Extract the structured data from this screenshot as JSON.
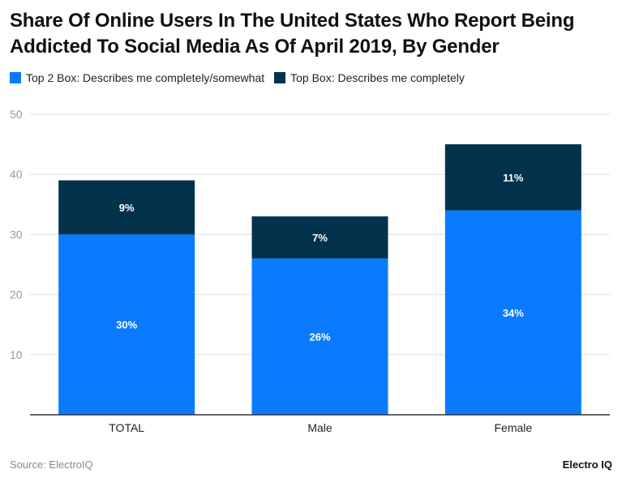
{
  "chart_data": {
    "type": "bar",
    "stacked": true,
    "title": "Share Of Online Users In The United States Who Report Being Addicted To Social Media As Of April 2019, By Gender",
    "categories": [
      "TOTAL",
      "Male",
      "Female"
    ],
    "series": [
      {
        "name": "Top 2 Box: Describes me completely/somewhat",
        "values": [
          30,
          26,
          34
        ],
        "color": "#0A7AFF",
        "labels": [
          "30%",
          "26%",
          "34%"
        ]
      },
      {
        "name": "Top Box: Describes me completely",
        "values": [
          9,
          7,
          11
        ],
        "color": "#02324C",
        "labels": [
          "9%",
          "7%",
          "11%"
        ]
      }
    ],
    "ylim": [
      0,
      50
    ],
    "yticks": [
      10,
      20,
      30,
      40,
      50
    ],
    "grid": true,
    "legend_position": "top-left"
  },
  "footer": {
    "source": "Source: ElectroIQ",
    "brand": "Electro IQ"
  }
}
